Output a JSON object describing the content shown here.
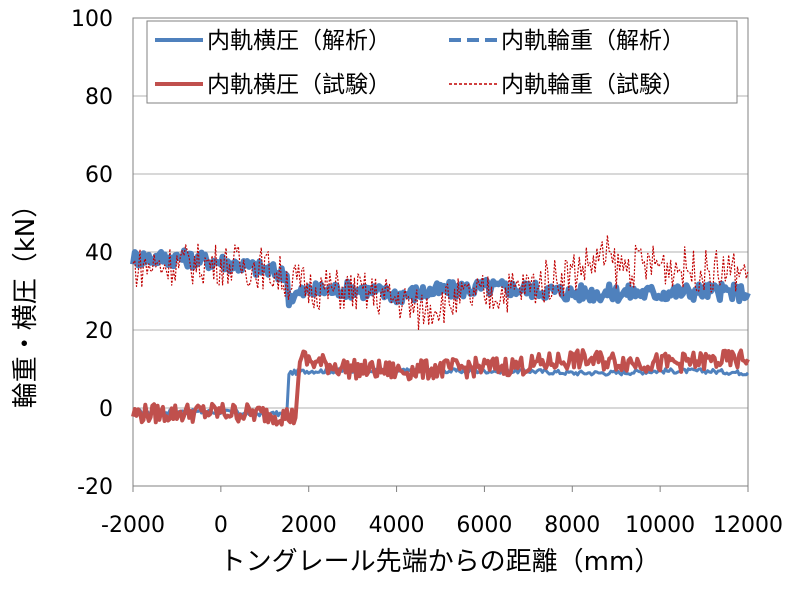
{
  "chart_data": {
    "type": "line",
    "xlabel": "トングレール先端からの距離（mm）",
    "ylabel": "輪重・横圧（kN）",
    "xlim": [
      -2000,
      12000
    ],
    "ylim": [
      -20,
      100
    ],
    "x_ticks": [
      -2000,
      0,
      2000,
      4000,
      6000,
      8000,
      10000,
      12000
    ],
    "y_ticks": [
      -20,
      0,
      20,
      40,
      60,
      80,
      100
    ],
    "grid": "horizontal",
    "legend_position": "top",
    "series": [
      {
        "name": "内軌横圧（解析）",
        "color": "#4f81bd",
        "style": "solid",
        "x": [
          -2000,
          0,
          1000,
          1500,
          1550,
          2000,
          3000,
          4000,
          5000,
          6000,
          7000,
          8000,
          9000,
          10000,
          11000,
          12000
        ],
        "y": [
          -1,
          -1,
          -1.5,
          -1.5,
          9,
          9.5,
          9.5,
          9.5,
          9.5,
          9.5,
          9.5,
          9,
          9,
          9.5,
          9.5,
          9
        ]
      },
      {
        "name": "内軌輪重（解析）",
        "color": "#4f81bd",
        "style": "dashed",
        "x": [
          -2000,
          -1000,
          0,
          1000,
          1500,
          1550,
          2000,
          3000,
          4000,
          5000,
          6000,
          7000,
          8000,
          9000,
          10000,
          11000,
          12000
        ],
        "y": [
          38.5,
          38.5,
          37.5,
          35.5,
          34,
          28.5,
          30,
          30.5,
          29,
          30,
          31,
          30.5,
          29.5,
          29.5,
          29.5,
          30,
          29.5
        ]
      },
      {
        "name": "内軌横圧（試験）",
        "color": "#c0504d",
        "style": "solid",
        "x": [
          -2000,
          0,
          1000,
          1500,
          1700,
          1800,
          2000,
          3000,
          4000,
          5000,
          6000,
          7000,
          8000,
          9000,
          10000,
          11000,
          12000
        ],
        "y": [
          -1.5,
          -1,
          -1.5,
          -2,
          -2.5,
          13,
          12,
          10,
          9.5,
          10,
          10.5,
          11,
          12.5,
          12,
          11.5,
          12,
          12.5
        ]
      },
      {
        "name": "内軌輪重（試験）",
        "color": "#c00000",
        "style": "dotted",
        "x": [
          -2000,
          -1000,
          0,
          1000,
          1500,
          2000,
          3000,
          4000,
          4500,
          5000,
          6000,
          7000,
          8000,
          8800,
          9000,
          10000,
          11000,
          12000
        ],
        "y": [
          36,
          37,
          37,
          36,
          33,
          31,
          30,
          28,
          25,
          27,
          29,
          31,
          35,
          39,
          36,
          37,
          35,
          35
        ]
      }
    ]
  }
}
